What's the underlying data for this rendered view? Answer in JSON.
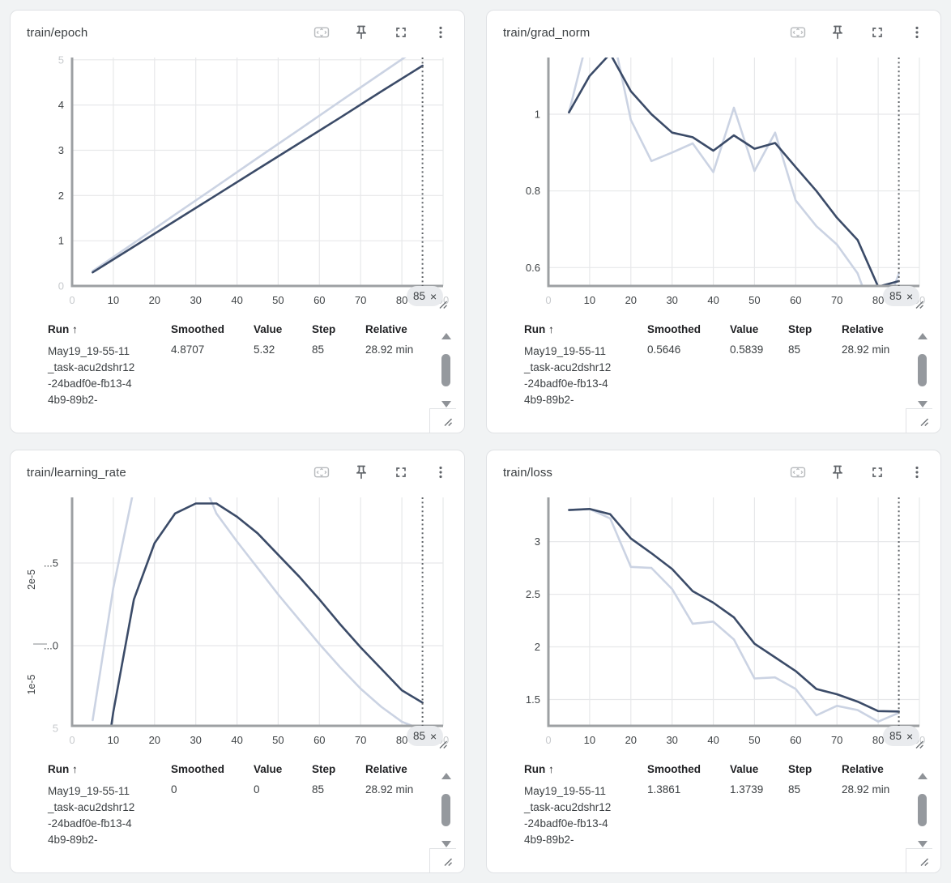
{
  "colors": {
    "smoothed_line": "#3b4b68",
    "value_line": "#cbd3e3",
    "grid": "#e7e8ea",
    "axis": "#9da0a3",
    "tick": "#3f4346",
    "faint_tick": "#c7cacd",
    "step_line": "#5f6368",
    "run_dot": "#42536e",
    "pill_bg": "#e9ebee"
  },
  "toolbar": {
    "icons": [
      "fit-to-data",
      "pin",
      "fullscreen",
      "more-options"
    ]
  },
  "table_headers": {
    "run": "Run ↑",
    "smoothed": "Smoothed",
    "value": "Value",
    "step": "Step",
    "relative": "Relative"
  },
  "step_selector": {
    "close_label": "×"
  },
  "cards": [
    {
      "title": "train/epoch",
      "chart": {
        "type": "line",
        "xlabel_ticks": "global step",
        "xlim": [
          0,
          90
        ],
        "ylim": [
          0,
          5.05
        ],
        "grid_x": [
          10,
          20,
          30,
          40,
          50,
          60,
          70,
          80,
          90
        ],
        "grid_y": [
          1,
          2,
          3,
          4,
          5
        ],
        "xticks": [
          {
            "v": 10,
            "label": "10"
          },
          {
            "v": 20,
            "label": "20"
          },
          {
            "v": 30,
            "label": "30"
          },
          {
            "v": 40,
            "label": "40"
          },
          {
            "v": 50,
            "label": "50"
          },
          {
            "v": 60,
            "label": "60"
          },
          {
            "v": 70,
            "label": "70"
          },
          {
            "v": 80,
            "label": "80"
          }
        ],
        "x_faint": [
          {
            "v": 0,
            "label": "0"
          },
          {
            "v": 90,
            "label": "90"
          }
        ],
        "yticks": [
          {
            "v": 1,
            "label": "1"
          },
          {
            "v": 2,
            "label": "2"
          },
          {
            "v": 3,
            "label": "3"
          },
          {
            "v": 4,
            "label": "4"
          }
        ],
        "y_faint": [
          {
            "v": 5,
            "label": "5"
          },
          {
            "v": 0,
            "label": "0"
          }
        ],
        "selected_step": 85,
        "selected_step_label": "85",
        "series": [
          {
            "name": "value",
            "points": [
              [
                5,
                0.33
              ],
              [
                15,
                0.95
              ],
              [
                25,
                1.58
              ],
              [
                35,
                2.2
              ],
              [
                45,
                2.83
              ],
              [
                55,
                3.45
              ],
              [
                65,
                4.08
              ],
              [
                75,
                4.7
              ],
              [
                85,
                5.32
              ]
            ]
          },
          {
            "name": "smoothed",
            "points": [
              [
                5,
                0.3
              ],
              [
                15,
                0.87
              ],
              [
                25,
                1.44
              ],
              [
                35,
                2.01
              ],
              [
                45,
                2.58
              ],
              [
                55,
                3.15
              ],
              [
                65,
                3.72
              ],
              [
                75,
                4.3
              ],
              [
                85,
                4.87
              ]
            ]
          }
        ]
      },
      "table": {
        "rows": [
          {
            "run": "May19_19-55-11_task-acu2dshr12-24badf0e-fb13-44b9-89b2-",
            "smoothed": "4.8707",
            "value": "5.32",
            "step": "85",
            "relative": "28.92 min"
          }
        ]
      }
    },
    {
      "title": "train/grad_norm",
      "chart": {
        "type": "line",
        "xlim": [
          0,
          90
        ],
        "ylim": [
          0.552,
          1.148
        ],
        "grid_x": [
          10,
          20,
          30,
          40,
          50,
          60,
          70,
          80,
          90
        ],
        "grid_y": [
          0.6,
          0.8,
          1
        ],
        "xticks": [
          {
            "v": 10,
            "label": "10"
          },
          {
            "v": 20,
            "label": "20"
          },
          {
            "v": 30,
            "label": "30"
          },
          {
            "v": 40,
            "label": "40"
          },
          {
            "v": 50,
            "label": "50"
          },
          {
            "v": 60,
            "label": "60"
          },
          {
            "v": 70,
            "label": "70"
          },
          {
            "v": 80,
            "label": "80"
          }
        ],
        "x_faint": [
          {
            "v": 0,
            "label": "0"
          },
          {
            "v": 90,
            "label": "90"
          }
        ],
        "yticks": [
          {
            "v": 0.6,
            "label": "0.6"
          },
          {
            "v": 0.8,
            "label": "0.8"
          },
          {
            "v": 1,
            "label": "1"
          }
        ],
        "selected_step": 85,
        "selected_step_label": "85",
        "series": [
          {
            "name": "value",
            "points": [
              [
                5,
                1.005
              ],
              [
                10,
                1.22
              ],
              [
                15,
                1.24
              ],
              [
                20,
                0.985
              ],
              [
                25,
                0.878
              ],
              [
                30,
                0.9
              ],
              [
                35,
                0.924
              ],
              [
                40,
                0.849
              ],
              [
                45,
                1.017
              ],
              [
                50,
                0.852
              ],
              [
                55,
                0.952
              ],
              [
                60,
                0.775
              ],
              [
                65,
                0.708
              ],
              [
                70,
                0.66
              ],
              [
                75,
                0.585
              ],
              [
                80,
                0.44
              ],
              [
                85,
                0.5839
              ]
            ]
          },
          {
            "name": "smoothed",
            "points": [
              [
                5,
                1.005
              ],
              [
                10,
                1.1
              ],
              [
                15,
                1.158
              ],
              [
                20,
                1.06
              ],
              [
                25,
                1.0
              ],
              [
                30,
                0.952
              ],
              [
                35,
                0.94
              ],
              [
                40,
                0.905
              ],
              [
                45,
                0.945
              ],
              [
                50,
                0.91
              ],
              [
                55,
                0.925
              ],
              [
                60,
                0.862
              ],
              [
                65,
                0.8
              ],
              [
                70,
                0.73
              ],
              [
                75,
                0.672
              ],
              [
                80,
                0.55
              ],
              [
                85,
                0.5646
              ]
            ]
          }
        ]
      },
      "table": {
        "rows": [
          {
            "run": "May19_19-55-11_task-acu2dshr12-24badf0e-fb13-44b9-89b2-",
            "smoothed": "0.5646",
            "value": "0.5839",
            "step": "85",
            "relative": "28.92 min"
          }
        ]
      }
    },
    {
      "title": "train/learning_rate",
      "chart": {
        "type": "line",
        "xlim": [
          0,
          90
        ],
        "ylim": [
          0.515,
          1.897
        ],
        "unit": "1e-5",
        "grid_x": [
          10,
          20,
          30,
          40,
          50,
          60,
          70,
          80,
          90
        ],
        "grid_y": [
          1.0,
          1.5
        ],
        "xticks": [
          {
            "v": 10,
            "label": "10"
          },
          {
            "v": 20,
            "label": "20"
          },
          {
            "v": 30,
            "label": "30"
          },
          {
            "v": 40,
            "label": "40"
          },
          {
            "v": 50,
            "label": "50"
          },
          {
            "v": 60,
            "label": "60"
          },
          {
            "v": 70,
            "label": "70"
          },
          {
            "v": 80,
            "label": "80"
          }
        ],
        "x_faint": [
          {
            "v": 0,
            "label": "0"
          },
          {
            "v": 90,
            "label": "90"
          }
        ],
        "yticks": [],
        "y_trunc": [
          {
            "v": 1.5,
            "label": "...5"
          },
          {
            "v": 1.0,
            "label": "...0"
          }
        ],
        "y_rotated": [
          {
            "v": 1.4,
            "label": "2e-5"
          },
          {
            "v": 0.765,
            "label": "1e-5"
          }
        ],
        "y_dash_v": 1.01,
        "y_faint": [
          {
            "v": 0.5,
            "label": "5",
            "x": 59
          }
        ],
        "selected_step": 85,
        "selected_step_label": "85",
        "series": [
          {
            "name": "value",
            "points": [
              [
                5,
                0.55
              ],
              [
                10,
                1.35
              ],
              [
                15,
                1.95
              ],
              [
                20,
                2.3
              ],
              [
                25,
                2.4
              ],
              [
                30,
                2.1
              ],
              [
                35,
                1.8
              ],
              [
                40,
                1.63
              ],
              [
                45,
                1.47
              ],
              [
                50,
                1.31
              ],
              [
                55,
                1.16
              ],
              [
                60,
                1.01
              ],
              [
                65,
                0.87
              ],
              [
                70,
                0.74
              ],
              [
                75,
                0.63
              ],
              [
                80,
                0.54
              ],
              [
                83,
                0.51
              ],
              [
                85,
                0.06
              ]
            ]
          },
          {
            "name": "smoothed",
            "points": [
              [
                5,
                -0.25
              ],
              [
                10,
                0.6
              ],
              [
                15,
                1.28
              ],
              [
                20,
                1.62
              ],
              [
                25,
                1.8
              ],
              [
                30,
                1.86
              ],
              [
                35,
                1.86
              ],
              [
                40,
                1.78
              ],
              [
                45,
                1.68
              ],
              [
                50,
                1.55
              ],
              [
                55,
                1.42
              ],
              [
                60,
                1.28
              ],
              [
                65,
                1.13
              ],
              [
                70,
                0.99
              ],
              [
                75,
                0.86
              ],
              [
                80,
                0.73
              ],
              [
                85,
                0.655
              ]
            ]
          }
        ]
      },
      "table": {
        "rows": [
          {
            "run": "May19_19-55-11_task-acu2dshr12-24badf0e-fb13-44b9-89b2-",
            "smoothed": "0",
            "value": "0",
            "step": "85",
            "relative": "28.92 min"
          }
        ]
      }
    },
    {
      "title": "train/loss",
      "chart": {
        "type": "line",
        "xlim": [
          0,
          90
        ],
        "ylim": [
          1.25,
          3.42
        ],
        "grid_x": [
          10,
          20,
          30,
          40,
          50,
          60,
          70,
          80,
          90
        ],
        "grid_y": [
          1.5,
          2,
          2.5,
          3
        ],
        "xticks": [
          {
            "v": 10,
            "label": "10"
          },
          {
            "v": 20,
            "label": "20"
          },
          {
            "v": 30,
            "label": "30"
          },
          {
            "v": 40,
            "label": "40"
          },
          {
            "v": 50,
            "label": "50"
          },
          {
            "v": 60,
            "label": "60"
          },
          {
            "v": 70,
            "label": "70"
          },
          {
            "v": 80,
            "label": "80"
          }
        ],
        "x_faint": [
          {
            "v": 0,
            "label": "0"
          },
          {
            "v": 90,
            "label": "90"
          }
        ],
        "yticks": [
          {
            "v": 1.5,
            "label": "1.5"
          },
          {
            "v": 2,
            "label": "2"
          },
          {
            "v": 2.5,
            "label": "2.5"
          },
          {
            "v": 3,
            "label": "3"
          }
        ],
        "selected_step": 85,
        "selected_step_label": "85",
        "series": [
          {
            "name": "value",
            "points": [
              [
                5,
                3.3
              ],
              [
                10,
                3.31
              ],
              [
                15,
                3.22
              ],
              [
                20,
                2.76
              ],
              [
                25,
                2.75
              ],
              [
                30,
                2.55
              ],
              [
                35,
                2.22
              ],
              [
                40,
                2.24
              ],
              [
                45,
                2.07
              ],
              [
                50,
                1.7
              ],
              [
                55,
                1.71
              ],
              [
                60,
                1.6
              ],
              [
                65,
                1.35
              ],
              [
                70,
                1.44
              ],
              [
                75,
                1.4
              ],
              [
                80,
                1.29
              ],
              [
                85,
                1.3739
              ]
            ]
          },
          {
            "name": "smoothed",
            "points": [
              [
                5,
                3.3
              ],
              [
                10,
                3.31
              ],
              [
                15,
                3.26
              ],
              [
                20,
                3.03
              ],
              [
                25,
                2.89
              ],
              [
                30,
                2.74
              ],
              [
                35,
                2.53
              ],
              [
                40,
                2.42
              ],
              [
                45,
                2.28
              ],
              [
                50,
                2.03
              ],
              [
                55,
                1.9
              ],
              [
                60,
                1.77
              ],
              [
                65,
                1.6
              ],
              [
                70,
                1.55
              ],
              [
                75,
                1.48
              ],
              [
                80,
                1.39
              ],
              [
                85,
                1.3861
              ]
            ]
          }
        ]
      },
      "table": {
        "rows": [
          {
            "run": "May19_19-55-11_task-acu2dshr12-24badf0e-fb13-44b9-89b2-",
            "smoothed": "1.3861",
            "value": "1.3739",
            "step": "85",
            "relative": "28.92 min"
          }
        ]
      }
    }
  ]
}
